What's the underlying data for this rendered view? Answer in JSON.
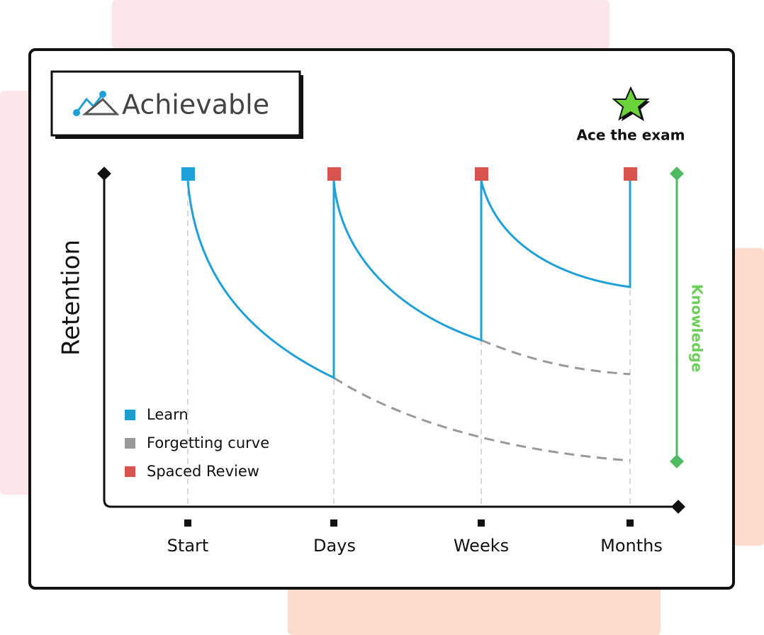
{
  "logo": {
    "text": "Achievable"
  },
  "goal": {
    "label": "Ace the exam"
  },
  "y_axis": {
    "label": "Retention"
  },
  "x_axis": {
    "labels": [
      "Start",
      "Days",
      "Weeks",
      "Months"
    ]
  },
  "legend": [
    {
      "label": "Learn"
    },
    {
      "label": "Forgetting curve"
    },
    {
      "label": "Spaced Review"
    }
  ],
  "side_label": "Knowledge"
}
